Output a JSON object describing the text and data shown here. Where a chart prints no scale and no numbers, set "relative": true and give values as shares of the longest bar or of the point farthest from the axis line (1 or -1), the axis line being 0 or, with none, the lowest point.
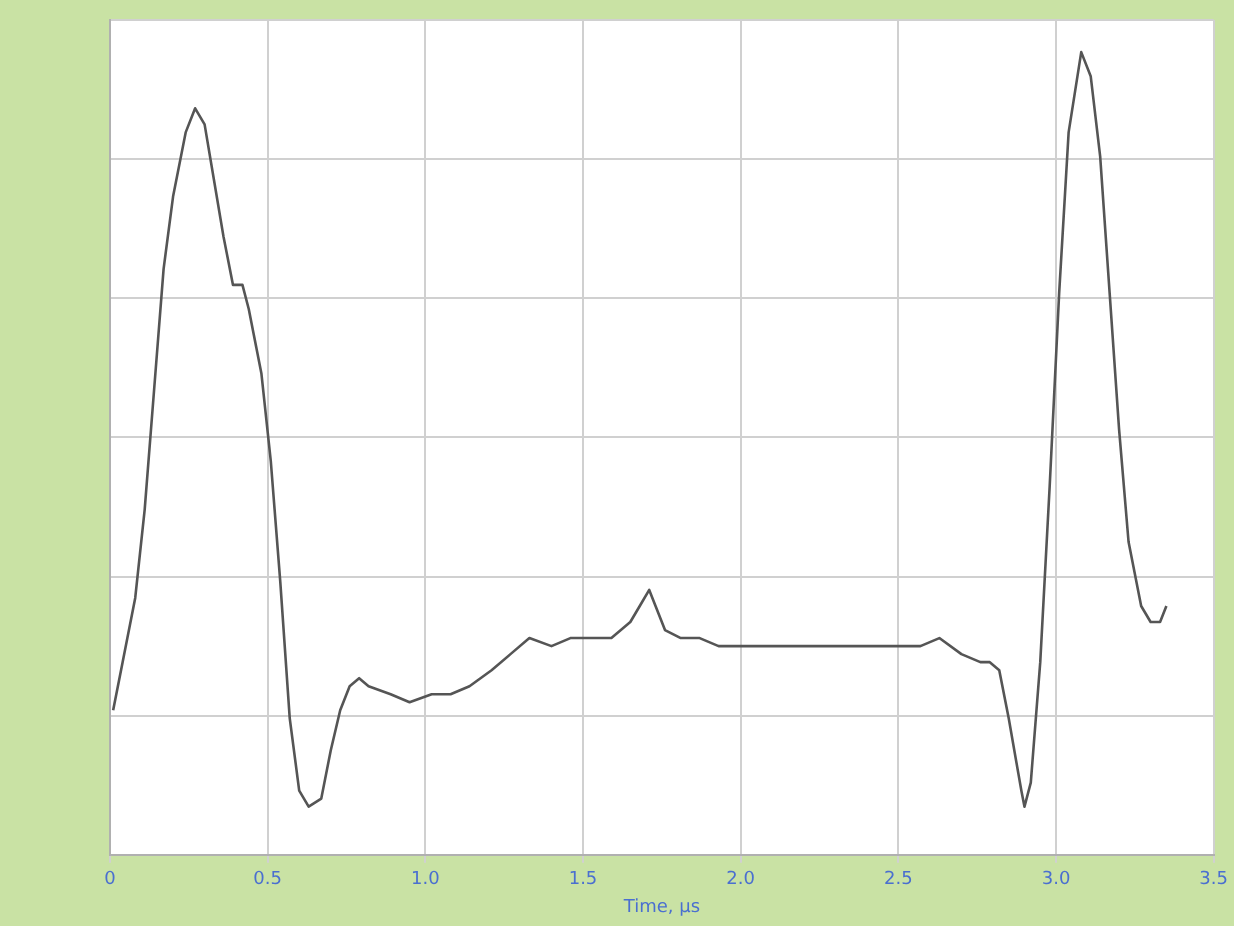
{
  "chart_data": {
    "type": "line",
    "relative": true,
    "xlabel": "Time, µs",
    "xlim": [
      0,
      3.5
    ],
    "xticks": [
      0,
      {
        "value": 0.5,
        "label": "0.5"
      },
      {
        "value": 1,
        "label": "1.0"
      },
      {
        "value": 1.5,
        "label": "1.5"
      },
      {
        "value": 2,
        "label": "2.0"
      },
      {
        "value": 2.5,
        "label": "2.5"
      },
      {
        "value": 3,
        "label": "3.0"
      },
      {
        "value": 3.5,
        "label": "3.5"
      }
    ],
    "grid": true,
    "legend": false,
    "marker": "none",
    "line_style": "solid",
    "series": [
      {
        "color": "#555555",
        "x": [
          0.01,
          0.04,
          0.08,
          0.11,
          0.14,
          0.17,
          0.2,
          0.24,
          0.27,
          0.3,
          0.33,
          0.36,
          0.39,
          0.42,
          0.44,
          0.48,
          0.51,
          0.54,
          0.57,
          0.6,
          0.63,
          0.67,
          0.7,
          0.73,
          0.76,
          0.79,
          0.82,
          0.89,
          0.95,
          1.02,
          1.08,
          1.14,
          1.21,
          1.27,
          1.33,
          1.4,
          1.46,
          1.52,
          1.59,
          1.65,
          1.68,
          1.71,
          1.73,
          1.76,
          1.81,
          1.87,
          1.93,
          2.0,
          2.06,
          2.12,
          2.19,
          2.25,
          2.32,
          2.38,
          2.44,
          2.51,
          2.57,
          2.63,
          2.7,
          2.76,
          2.79,
          2.82,
          2.85,
          2.89,
          2.9,
          2.92,
          2.95,
          2.98,
          3.01,
          3.04,
          3.08,
          3.11,
          3.14,
          3.17,
          3.2,
          3.23,
          3.27,
          3.3,
          3.33,
          3.35
        ],
        "values": [
          0.18,
          0.24,
          0.32,
          0.43,
          0.58,
          0.73,
          0.82,
          0.9,
          0.93,
          0.91,
          0.84,
          0.77,
          0.71,
          0.71,
          0.68,
          0.6,
          0.49,
          0.34,
          0.17,
          0.08,
          0.06,
          0.07,
          0.13,
          0.18,
          0.21,
          0.22,
          0.21,
          0.2,
          0.19,
          0.2,
          0.2,
          0.21,
          0.23,
          0.25,
          0.27,
          0.26,
          0.27,
          0.27,
          0.27,
          0.29,
          0.31,
          0.33,
          0.31,
          0.28,
          0.27,
          0.27,
          0.26,
          0.26,
          0.26,
          0.26,
          0.26,
          0.26,
          0.26,
          0.26,
          0.26,
          0.26,
          0.26,
          0.27,
          0.25,
          0.24,
          0.24,
          0.23,
          0.17,
          0.08,
          0.06,
          0.09,
          0.24,
          0.46,
          0.7,
          0.9,
          1.0,
          0.97,
          0.87,
          0.7,
          0.53,
          0.39,
          0.31,
          0.29,
          0.29,
          0.31
        ]
      }
    ]
  }
}
